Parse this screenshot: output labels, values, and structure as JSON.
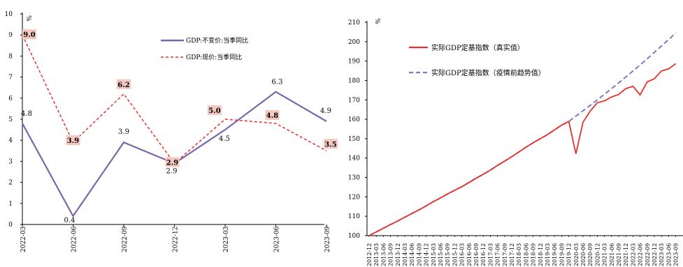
{
  "chart_data": [
    {
      "type": "line",
      "title": "",
      "xlabel": "",
      "ylabel": "%",
      "ylim": [
        0,
        10
      ],
      "yticks": [
        0,
        1,
        2,
        3,
        4,
        5,
        6,
        7,
        8,
        9,
        10
      ],
      "categories": [
        "2022-03",
        "2022-06",
        "2022-09",
        "2022-12",
        "2023-03",
        "2023-06",
        "2023-09"
      ],
      "legend_position": "top-right",
      "series": [
        {
          "name": "GDP:不变价:当季同比",
          "color": "#7a67ab",
          "style": "solid",
          "values": [
            4.8,
            0.4,
            3.9,
            2.9,
            4.5,
            6.3,
            4.9
          ],
          "labels": [
            "4.8",
            "0.4",
            "3.9",
            "2.9",
            "4.5",
            "6.3",
            "4.9"
          ]
        },
        {
          "name": "GDP:现价:当季同比",
          "color": "#e8312c",
          "style": "dashed",
          "values": [
            9.0,
            3.9,
            6.2,
            2.9,
            5.0,
            4.8,
            3.5
          ],
          "labels": [
            "9.0",
            "3.9",
            "6.2",
            "2.9",
            "5.0",
            "4.8",
            "3.5"
          ],
          "label_bg": "#f4c7c1"
        }
      ]
    },
    {
      "type": "line",
      "title": "",
      "xlabel": "",
      "ylabel": "%",
      "ylim": [
        100,
        210
      ],
      "yticks": [
        100,
        110,
        120,
        130,
        140,
        150,
        160,
        170,
        180,
        190,
        200,
        210
      ],
      "categories": [
        "2012-12",
        "2013-03",
        "2013-06",
        "2013-09",
        "2013-12",
        "2014-03",
        "2014-06",
        "2014-09",
        "2014-12",
        "2015-03",
        "2015-06",
        "2015-09",
        "2015-12",
        "2016-03",
        "2016-06",
        "2016-09",
        "2016-12",
        "2017-03",
        "2017-06",
        "2017-09",
        "2017-12",
        "2018-03",
        "2018-06",
        "2018-09",
        "2018-12",
        "2019-03",
        "2019-06",
        "2019-09",
        "2019-12",
        "2020-03",
        "2020-06",
        "2020-09",
        "2020-12",
        "2021-03",
        "2021-06",
        "2021-09",
        "2021-12",
        "2022-03",
        "2022-06",
        "2022-09",
        "2022-12",
        "2023-03",
        "2023-06",
        "2023-09"
      ],
      "legend_position": "top-left",
      "series": [
        {
          "name": "实际GDP定基指数（真实值）",
          "color": "#e8312c",
          "style": "solid",
          "values": [
            100,
            101.9,
            103.8,
            105.7,
            107.5,
            109.5,
            111.4,
            113.3,
            115.3,
            117.5,
            119.4,
            121.5,
            123.4,
            125.2,
            127.4,
            129.6,
            131.6,
            133.8,
            136.2,
            138.4,
            140.7,
            143.1,
            145.6,
            147.9,
            150.0,
            152.1,
            154.5,
            157.0,
            158.9,
            142.2,
            158.5,
            164.2,
            168.5,
            169.5,
            171.5,
            172.8,
            175.8,
            177.0,
            172.6,
            179.3,
            180.9,
            184.9,
            186.0,
            188.7
          ]
        },
        {
          "name": "实际GDP定基指数（疫情前趋势值）",
          "color": "#7f79c0",
          "style": "dashed",
          "values": [
            100,
            101.9,
            103.8,
            105.7,
            107.5,
            109.5,
            111.4,
            113.3,
            115.3,
            117.5,
            119.4,
            121.5,
            123.4,
            125.2,
            127.4,
            129.6,
            131.6,
            133.8,
            136.2,
            138.4,
            140.7,
            143.1,
            145.6,
            147.9,
            150.0,
            152.1,
            154.5,
            157.0,
            158.9,
            161.6,
            164.4,
            167.2,
            170.0,
            172.9,
            175.8,
            178.8,
            181.8,
            184.9,
            188.0,
            191.2,
            194.5,
            197.8,
            201.1,
            204.5
          ]
        }
      ]
    }
  ]
}
